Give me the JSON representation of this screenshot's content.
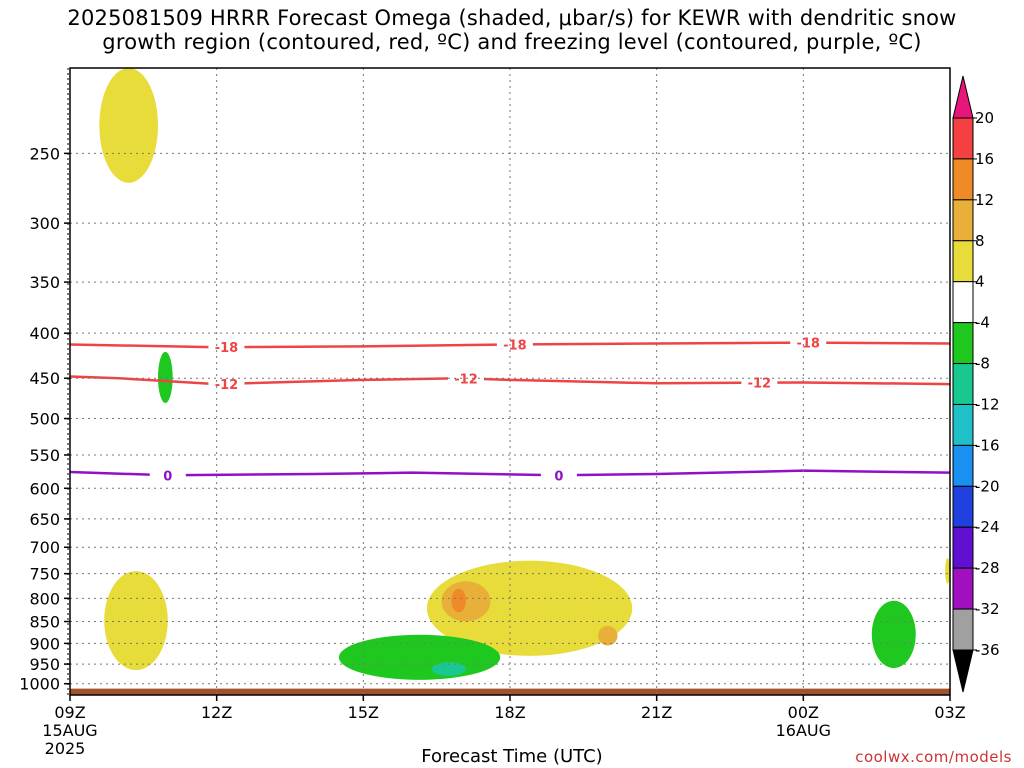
{
  "title": {
    "line1": "2025081509 HRRR Forecast Omega (shaded, μbar/s) for KEWR with dendritic snow",
    "line2": "growth region (contoured, red, ºC) and freezing level (contoured, purple, ºC)"
  },
  "credit": "coolwx.com/models",
  "chart_data": {
    "type": "heatmap",
    "title": "2025081509 HRRR Forecast Omega (shaded, μbar/s) for KEWR with dendritic snow growth region (contoured, red, ºC) and freezing level (contoured, purple, ºC)",
    "xlabel": "Forecast Time (UTC)",
    "ylabel": "",
    "x_ticks": [
      {
        "hour": 0,
        "label": "09Z",
        "sub1": "15AUG",
        "sub2": "2025"
      },
      {
        "hour": 3,
        "label": "12Z"
      },
      {
        "hour": 6,
        "label": "15Z"
      },
      {
        "hour": 9,
        "label": "18Z"
      },
      {
        "hour": 12,
        "label": "21Z"
      },
      {
        "hour": 15,
        "label": "00Z",
        "sub1": "16AUG"
      },
      {
        "hour": 18,
        "label": "03Z"
      }
    ],
    "xlim": [
      0,
      18
    ],
    "y_ticks": [
      250,
      300,
      350,
      400,
      450,
      500,
      550,
      600,
      650,
      700,
      750,
      800,
      850,
      900,
      950,
      1000
    ],
    "ylim": [
      200,
      1030
    ],
    "y_scale": "log-pressure",
    "grid": true,
    "colorbar": {
      "labels": [
        "20",
        "16",
        "12",
        "8",
        "4",
        "-4",
        "-8",
        "-12",
        "-16",
        "-20",
        "-24",
        "-28",
        "-32",
        "-36"
      ],
      "colors": [
        "#e8157a",
        "#f44040",
        "#f08a28",
        "#e8b038",
        "#e8dc3a",
        "#ffffff",
        "#1ec81e",
        "#18c890",
        "#20c0c8",
        "#1a90f0",
        "#2040e0",
        "#6010d0",
        "#a010c0",
        "#a0a0a0",
        "#000000"
      ]
    },
    "omega_regions": [
      {
        "level": "4-8",
        "color": "#e8dc3a",
        "hour_range": [
          0.6,
          1.8
        ],
        "pressure_range": [
          200,
          270
        ]
      },
      {
        "level": "4-8",
        "color": "#e8dc3a",
        "hour_range": [
          0.7,
          2.0
        ],
        "pressure_range": [
          745,
          965
        ]
      },
      {
        "level": "-4--8",
        "color": "#1ec81e",
        "hour_range": [
          1.8,
          2.1
        ],
        "pressure_range": [
          420,
          480
        ]
      },
      {
        "level": "4-8",
        "color": "#e8dc3a",
        "hour_range": [
          7.3,
          11.5
        ],
        "pressure_range": [
          725,
          930
        ]
      },
      {
        "level": "8-12",
        "color": "#e8b038",
        "hour_range": [
          7.6,
          8.6
        ],
        "pressure_range": [
          765,
          850
        ]
      },
      {
        "level": "12-16",
        "color": "#f08a28",
        "hour_range": [
          7.8,
          8.1
        ],
        "pressure_range": [
          780,
          830
        ]
      },
      {
        "level": "8-12",
        "color": "#e8b038",
        "hour_range": [
          10.8,
          11.2
        ],
        "pressure_range": [
          860,
          905
        ]
      },
      {
        "level": "-4--8",
        "color": "#1ec81e",
        "hour_range": [
          5.5,
          8.8
        ],
        "pressure_range": [
          880,
          990
        ]
      },
      {
        "level": "-8--12",
        "color": "#18c890",
        "hour_range": [
          7.4,
          8.1
        ],
        "pressure_range": [
          945,
          980
        ]
      },
      {
        "level": "-4--8",
        "color": "#1ec81e",
        "hour_range": [
          16.4,
          17.3
        ],
        "pressure_range": [
          805,
          960
        ]
      },
      {
        "level": "4-8",
        "color": "#e8dc3a",
        "hour_range": [
          17.9,
          18
        ],
        "pressure_range": [
          720,
          770
        ]
      }
    ],
    "contours": [
      {
        "name": "-18",
        "color": "#ee4444",
        "points": [
          [
            0,
            412
          ],
          [
            3,
            415
          ],
          [
            6,
            414
          ],
          [
            9,
            412
          ],
          [
            12,
            411
          ],
          [
            15,
            410
          ],
          [
            18,
            411
          ]
        ],
        "labels": [
          [
            3.2,
            "-18"
          ],
          [
            9.1,
            "-18"
          ],
          [
            15.1,
            "-18"
          ]
        ]
      },
      {
        "name": "-12",
        "color": "#ee4444",
        "points": [
          [
            0,
            448
          ],
          [
            1,
            450
          ],
          [
            3,
            457
          ],
          [
            6,
            452
          ],
          [
            8,
            450
          ],
          [
            9,
            452
          ],
          [
            12,
            456
          ],
          [
            15,
            455
          ],
          [
            18,
            457
          ]
        ],
        "labels": [
          [
            3.2,
            "-12"
          ],
          [
            8.1,
            "-12"
          ],
          [
            14.1,
            "-12"
          ]
        ]
      },
      {
        "name": "0",
        "color": "#9010c8",
        "points": [
          [
            0,
            575
          ],
          [
            2,
            580
          ],
          [
            5,
            578
          ],
          [
            7,
            576
          ],
          [
            10,
            580
          ],
          [
            12,
            578
          ],
          [
            15,
            573
          ],
          [
            18,
            576
          ]
        ],
        "labels": [
          [
            2.0,
            "0"
          ],
          [
            10.0,
            "0"
          ]
        ]
      }
    ],
    "terrain": {
      "color": "#a0522d",
      "pressure": 1013
    }
  },
  "icons": [
    "colorbar-up-triangle",
    "colorbar-down-triangle"
  ]
}
